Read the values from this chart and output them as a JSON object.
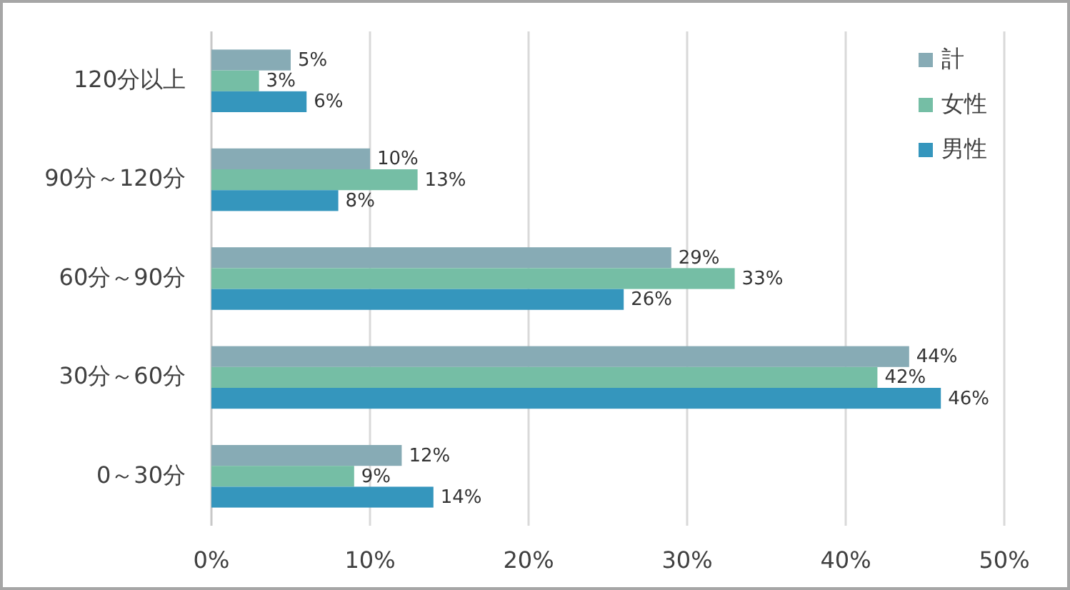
{
  "chart_data": {
    "type": "bar",
    "orientation": "horizontal",
    "categories": [
      "120分以上",
      "90分～120分",
      "60分～90分",
      "30分～60分",
      "0～30分"
    ],
    "series": [
      {
        "name": "計",
        "color": "#87abb5",
        "values": [
          5,
          10,
          29,
          44,
          12
        ],
        "value_labels": [
          "5%",
          "10%",
          "29%",
          "44%",
          "12%"
        ]
      },
      {
        "name": "女性",
        "color": "#75bea5",
        "values": [
          3,
          13,
          33,
          42,
          9
        ],
        "value_labels": [
          "3%",
          "13%",
          "33%",
          "42%",
          "9%"
        ]
      },
      {
        "name": "男性",
        "color": "#3596bd",
        "values": [
          6,
          8,
          26,
          46,
          14
        ],
        "value_labels": [
          "6%",
          "8%",
          "26%",
          "46%",
          "14%"
        ]
      }
    ],
    "xlim": [
      0,
      50
    ],
    "xticks": [
      {
        "value": 0,
        "label": "0%"
      },
      {
        "value": 10,
        "label": "10%"
      },
      {
        "value": 20,
        "label": "20%"
      },
      {
        "value": 30,
        "label": "30%"
      },
      {
        "value": 40,
        "label": "40%"
      },
      {
        "value": 50,
        "label": "50%"
      }
    ],
    "grid": "x",
    "legend": "top right"
  }
}
